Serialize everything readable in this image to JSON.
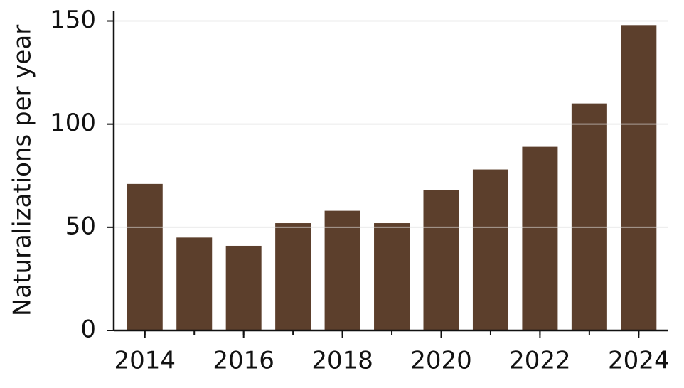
{
  "chart_data": {
    "type": "bar",
    "y_label": "Naturalizations per year",
    "x": [
      2014,
      2015,
      2016,
      2017,
      2018,
      2019,
      2020,
      2021,
      2022,
      2023,
      2024
    ],
    "values": [
      71,
      45,
      41,
      52,
      58,
      52,
      68,
      78,
      89,
      110,
      148
    ],
    "color": "#5c3f2c",
    "xlim": [
      2013.37,
      2024.6
    ],
    "xticks": [
      2014,
      2016,
      2018,
      2020,
      2022,
      2024
    ],
    "ylim": [
      0,
      155
    ],
    "yticks": [
      0,
      50,
      100,
      150
    ],
    "grid": true
  }
}
